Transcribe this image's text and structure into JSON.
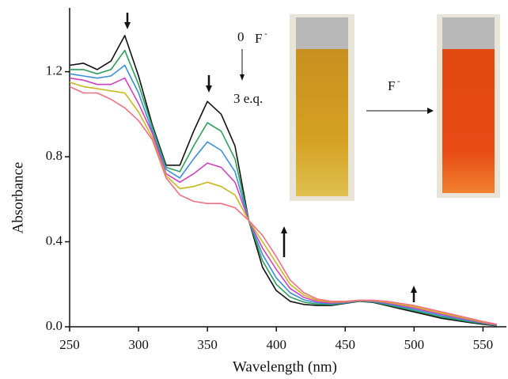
{
  "chart_data": {
    "type": "line",
    "x_label": "Wavelength (nm)",
    "y_label": "Absorbance",
    "x": [
      250,
      260,
      270,
      280,
      290,
      300,
      310,
      320,
      330,
      340,
      350,
      360,
      370,
      380,
      390,
      400,
      410,
      420,
      430,
      440,
      450,
      460,
      470,
      480,
      490,
      500,
      510,
      520,
      530,
      540,
      550,
      560
    ],
    "series": [
      {
        "color": "#111111",
        "values": [
          1.23,
          1.24,
          1.21,
          1.25,
          1.37,
          1.18,
          0.95,
          0.76,
          0.76,
          0.92,
          1.06,
          1.0,
          0.85,
          0.5,
          0.28,
          0.17,
          0.12,
          0.105,
          0.1,
          0.1,
          0.11,
          0.12,
          0.115,
          0.1,
          0.085,
          0.07,
          0.055,
          0.04,
          0.03,
          0.02,
          0.012,
          0.005
        ]
      },
      {
        "color": "#2aa05a",
        "values": [
          1.21,
          1.21,
          1.19,
          1.21,
          1.3,
          1.14,
          0.94,
          0.75,
          0.73,
          0.85,
          0.96,
          0.92,
          0.79,
          0.5,
          0.31,
          0.2,
          0.14,
          0.116,
          0.106,
          0.104,
          0.112,
          0.121,
          0.117,
          0.104,
          0.09,
          0.076,
          0.061,
          0.046,
          0.035,
          0.024,
          0.015,
          0.006
        ]
      },
      {
        "color": "#3a8fd8",
        "values": [
          1.19,
          1.18,
          1.17,
          1.18,
          1.23,
          1.1,
          0.92,
          0.74,
          0.7,
          0.79,
          0.87,
          0.83,
          0.73,
          0.5,
          0.34,
          0.23,
          0.16,
          0.127,
          0.112,
          0.108,
          0.114,
          0.122,
          0.119,
          0.108,
          0.095,
          0.082,
          0.067,
          0.052,
          0.04,
          0.028,
          0.018,
          0.008
        ]
      },
      {
        "color": "#d040c0",
        "values": [
          1.17,
          1.16,
          1.14,
          1.14,
          1.17,
          1.05,
          0.91,
          0.72,
          0.68,
          0.72,
          0.77,
          0.75,
          0.68,
          0.5,
          0.37,
          0.27,
          0.18,
          0.138,
          0.118,
          0.112,
          0.116,
          0.123,
          0.121,
          0.112,
          0.1,
          0.088,
          0.073,
          0.058,
          0.045,
          0.032,
          0.019,
          0.009
        ]
      },
      {
        "color": "#c8b820",
        "values": [
          1.15,
          1.13,
          1.12,
          1.11,
          1.1,
          1.01,
          0.89,
          0.71,
          0.65,
          0.66,
          0.68,
          0.66,
          0.62,
          0.5,
          0.4,
          0.3,
          0.2,
          0.149,
          0.124,
          0.116,
          0.118,
          0.124,
          0.123,
          0.116,
          0.105,
          0.094,
          0.079,
          0.064,
          0.05,
          0.036,
          0.022,
          0.011
        ]
      },
      {
        "color": "#f07080",
        "values": [
          1.13,
          1.1,
          1.1,
          1.07,
          1.03,
          0.97,
          0.88,
          0.7,
          0.62,
          0.59,
          0.58,
          0.58,
          0.56,
          0.5,
          0.43,
          0.33,
          0.22,
          0.16,
          0.13,
          0.12,
          0.12,
          0.125,
          0.125,
          0.12,
          0.11,
          0.1,
          0.085,
          0.07,
          0.055,
          0.04,
          0.025,
          0.012
        ]
      }
    ],
    "xlim": [
      250,
      567
    ],
    "ylim": [
      0,
      1.5
    ],
    "xticks": [
      250,
      300,
      350,
      400,
      450,
      500,
      550
    ],
    "yticks": [
      {
        "value": 0,
        "label": "0.0"
      },
      0.4,
      0.8,
      1.2
    ],
    "annotations": [
      "0",
      "F",
      "-",
      "3 e.q.",
      "F",
      "-"
    ]
  }
}
